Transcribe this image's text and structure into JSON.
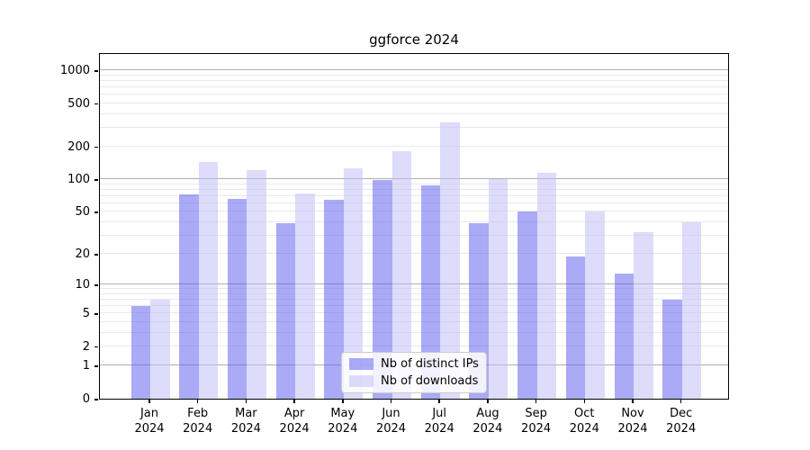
{
  "title": "ggforce 2024",
  "chart_data": {
    "type": "bar",
    "title": "ggforce 2024",
    "categories": [
      "Jan",
      "Feb",
      "Mar",
      "Apr",
      "May",
      "Jun",
      "Jul",
      "Aug",
      "Sep",
      "Oct",
      "Nov",
      "Dec"
    ],
    "category_year": "2024",
    "series": [
      {
        "name": "Nb of distinct IPs",
        "color": "#a9a9f7",
        "fill": "rgba(85,85,240,0.5)",
        "values": [
          6,
          73,
          66,
          39,
          65,
          99,
          88,
          39,
          50,
          19,
          13,
          7
        ]
      },
      {
        "name": "Nb of downloads",
        "color": "#dddcfa",
        "fill": "rgba(187,185,245,0.5)",
        "values": [
          7,
          145,
          122,
          74,
          127,
          183,
          332,
          100,
          116,
          50,
          32,
          40
        ]
      }
    ],
    "xlabel": "",
    "ylabel": "",
    "yscale": "log1p",
    "yticks": [
      0,
      1,
      2,
      5,
      10,
      20,
      50,
      100,
      200,
      500,
      1000
    ],
    "ylim": [
      0,
      1440
    ],
    "grid": true,
    "major_grid_values": [
      1,
      10,
      100,
      1000
    ],
    "grid_major_color": "#b0b0b0",
    "grid_minor_color": "#e9e9e9",
    "legend_position": "lower center"
  },
  "legend": {
    "items": [
      {
        "label": "Nb of distinct IPs"
      },
      {
        "label": "Nb of downloads"
      }
    ]
  }
}
